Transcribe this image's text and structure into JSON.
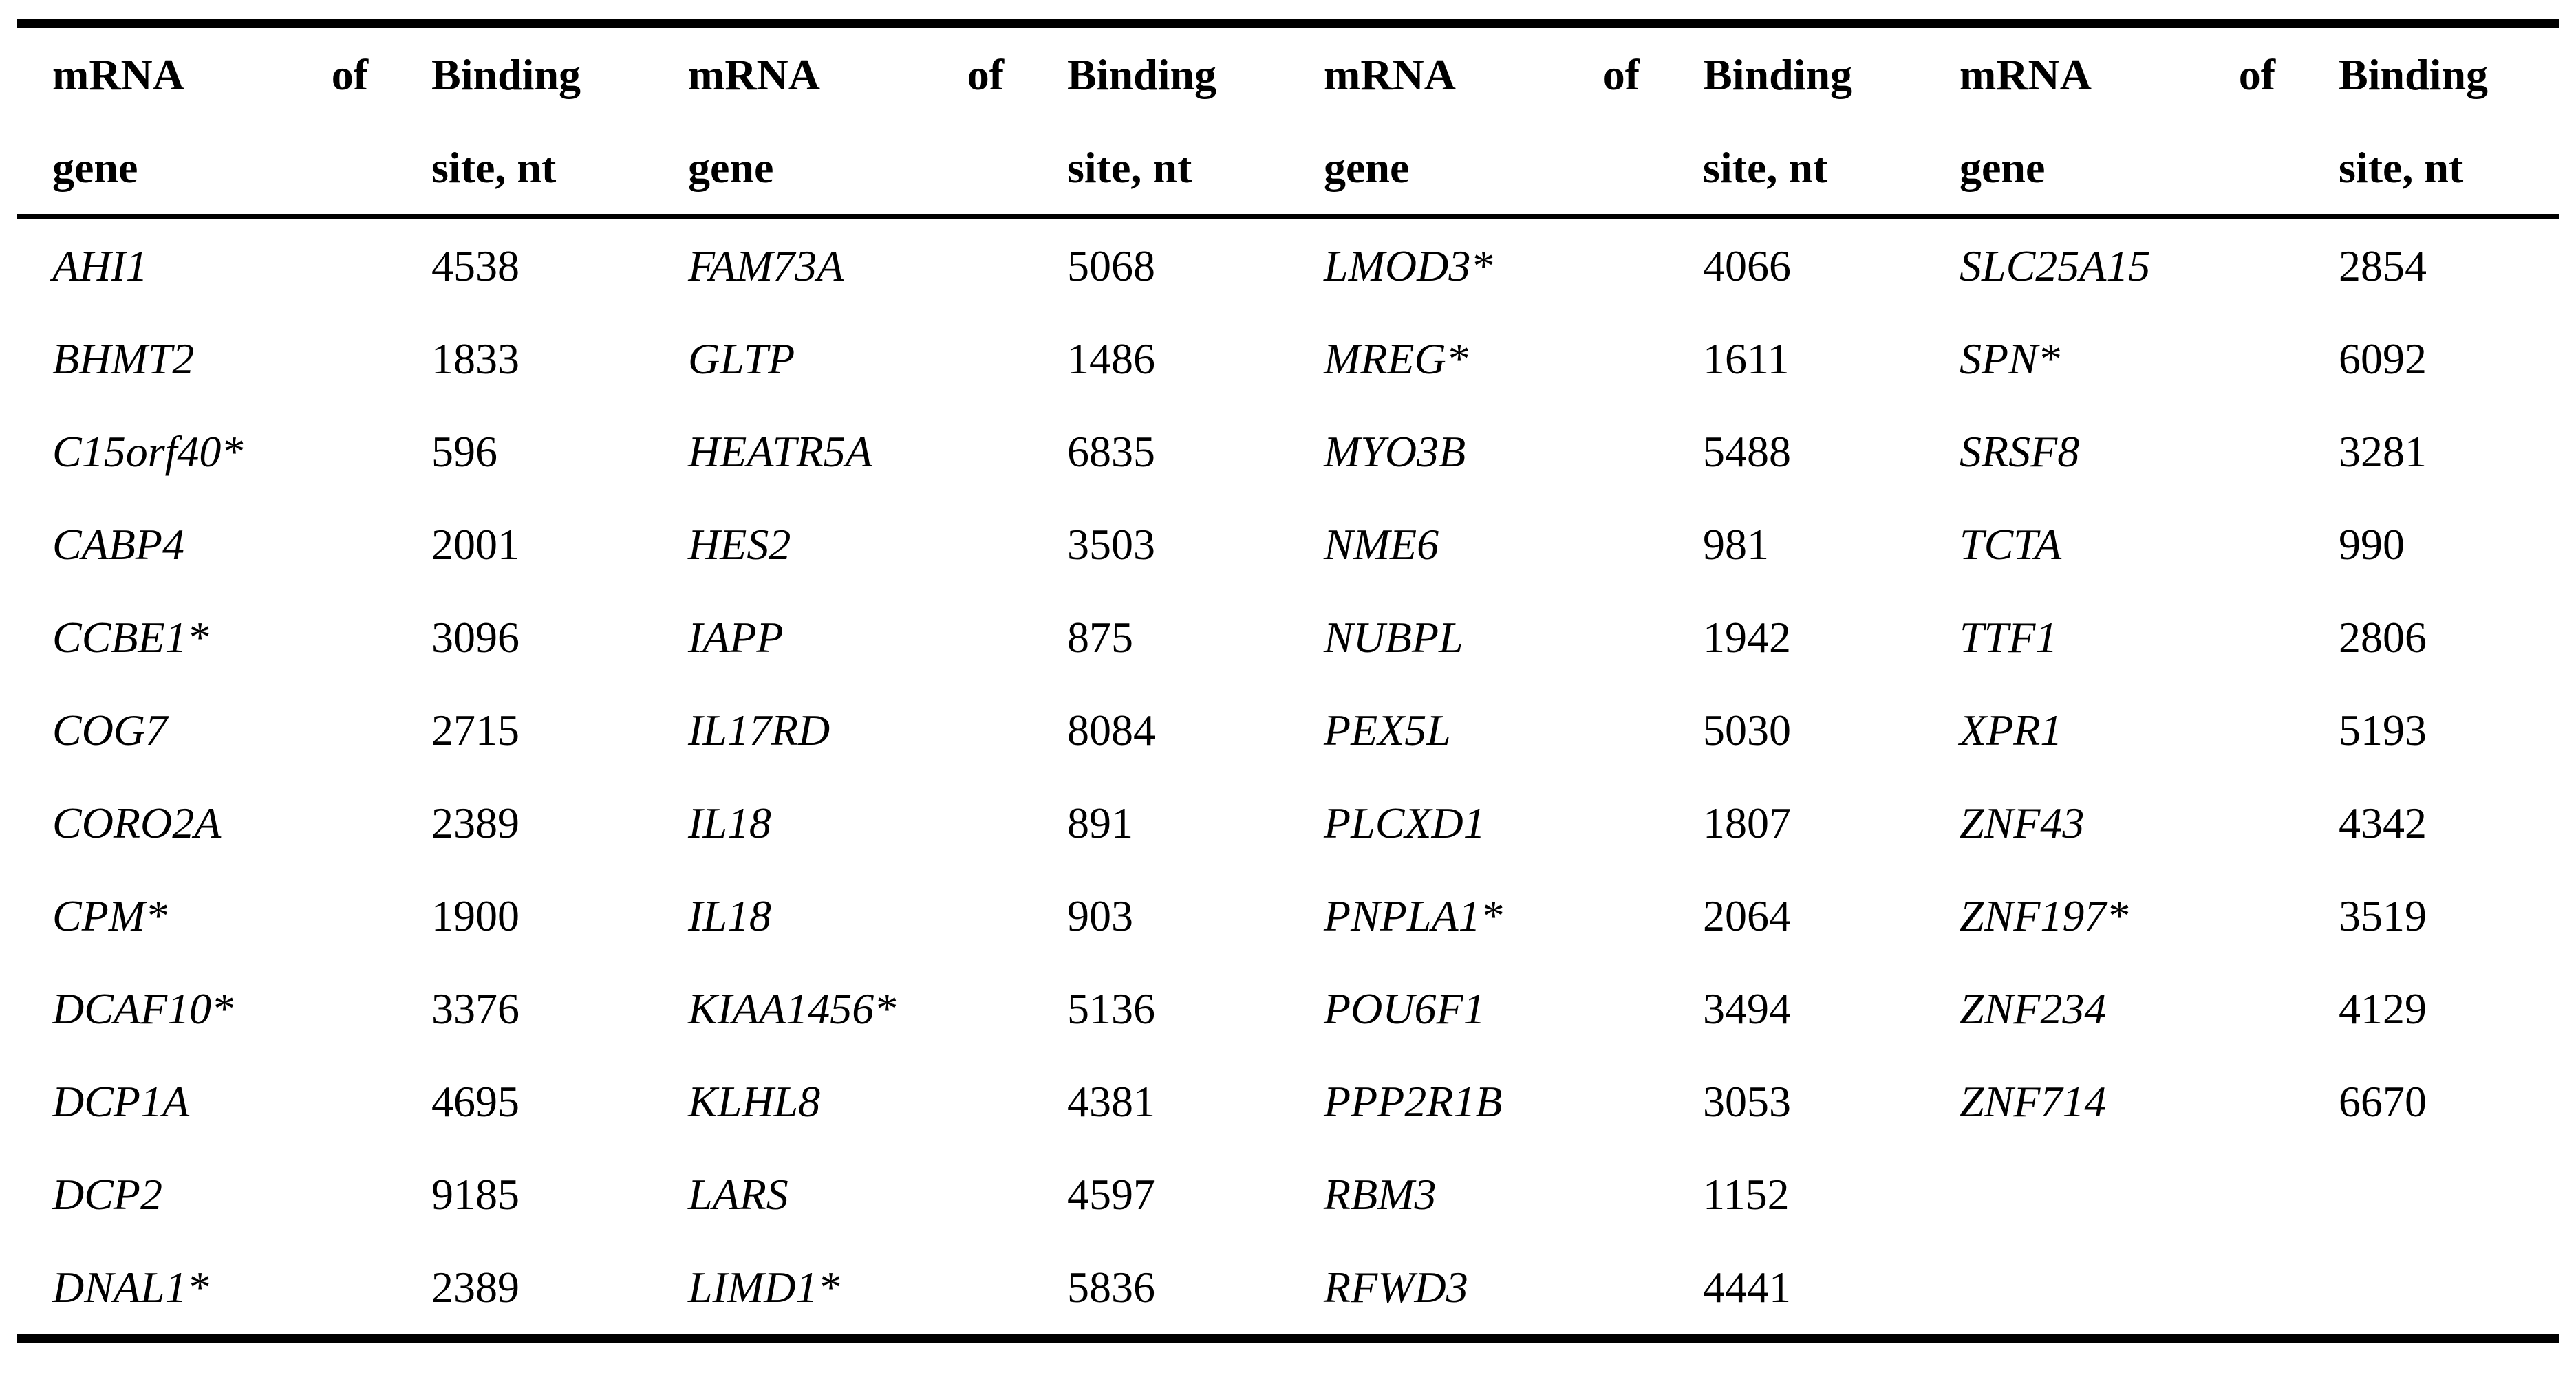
{
  "colors": {
    "text": "#000000",
    "background": "#ffffff",
    "rule": "#000000"
  },
  "table": {
    "header": {
      "gene_word1": "mRNA",
      "gene_word2": "of",
      "gene_line2": "gene",
      "site_line1": "Binding",
      "site_line2": "site, nt"
    },
    "pairs": [
      {
        "rows": [
          {
            "gene": "AHI1",
            "site": "4538"
          },
          {
            "gene": "BHMT2",
            "site": "1833"
          },
          {
            "gene": "C15orf40*",
            "site": "596"
          },
          {
            "gene": "CABP4",
            "site": "2001"
          },
          {
            "gene": "CCBE1*",
            "site": "3096"
          },
          {
            "gene": "COG7",
            "site": "2715"
          },
          {
            "gene": "CORO2A",
            "site": "2389"
          },
          {
            "gene": "CPM*",
            "site": "1900"
          },
          {
            "gene": "DCAF10*",
            "site": "3376"
          },
          {
            "gene": "DCP1A",
            "site": "4695"
          },
          {
            "gene": "DCP2",
            "site": "9185"
          },
          {
            "gene": "DNAL1*",
            "site": "2389"
          }
        ]
      },
      {
        "rows": [
          {
            "gene": "FAM73A",
            "site": "5068"
          },
          {
            "gene": "GLTP",
            "site": "1486"
          },
          {
            "gene": "HEATR5A",
            "site": "6835"
          },
          {
            "gene": "HES2",
            "site": "3503"
          },
          {
            "gene": "IAPP",
            "site": "875"
          },
          {
            "gene": "IL17RD",
            "site": "8084"
          },
          {
            "gene": "IL18",
            "site": "891"
          },
          {
            "gene": "IL18",
            "site": "903"
          },
          {
            "gene": "KIAA1456*",
            "site": "5136"
          },
          {
            "gene": "KLHL8",
            "site": "4381"
          },
          {
            "gene": "LARS",
            "site": "4597"
          },
          {
            "gene": "LIMD1*",
            "site": "5836"
          }
        ]
      },
      {
        "rows": [
          {
            "gene": "LMOD3*",
            "site": "4066"
          },
          {
            "gene": "MREG*",
            "site": "1611"
          },
          {
            "gene": "MYO3B",
            "site": "5488"
          },
          {
            "gene": "NME6",
            "site": "981"
          },
          {
            "gene": "NUBPL",
            "site": "1942"
          },
          {
            "gene": "PEX5L",
            "site": "5030"
          },
          {
            "gene": "PLCXD1",
            "site": "1807"
          },
          {
            "gene": "PNPLA1*",
            "site": "2064"
          },
          {
            "gene": "POU6F1",
            "site": "3494"
          },
          {
            "gene": "PPP2R1B",
            "site": "3053"
          },
          {
            "gene": "RBM3",
            "site": "1152"
          },
          {
            "gene": "RFWD3",
            "site": "4441"
          }
        ]
      },
      {
        "rows": [
          {
            "gene": "SLC25A15",
            "site": "2854"
          },
          {
            "gene": "SPN*",
            "site": "6092"
          },
          {
            "gene": "SRSF8",
            "site": "3281"
          },
          {
            "gene": "TCTA",
            "site": "990"
          },
          {
            "gene": "TTF1",
            "site": "2806"
          },
          {
            "gene": "XPR1",
            "site": "5193"
          },
          {
            "gene": "ZNF43",
            "site": "4342"
          },
          {
            "gene": "ZNF197*",
            "site": "3519"
          },
          {
            "gene": "ZNF234",
            "site": "4129"
          },
          {
            "gene": "ZNF714",
            "site": "6670"
          }
        ]
      }
    ]
  }
}
